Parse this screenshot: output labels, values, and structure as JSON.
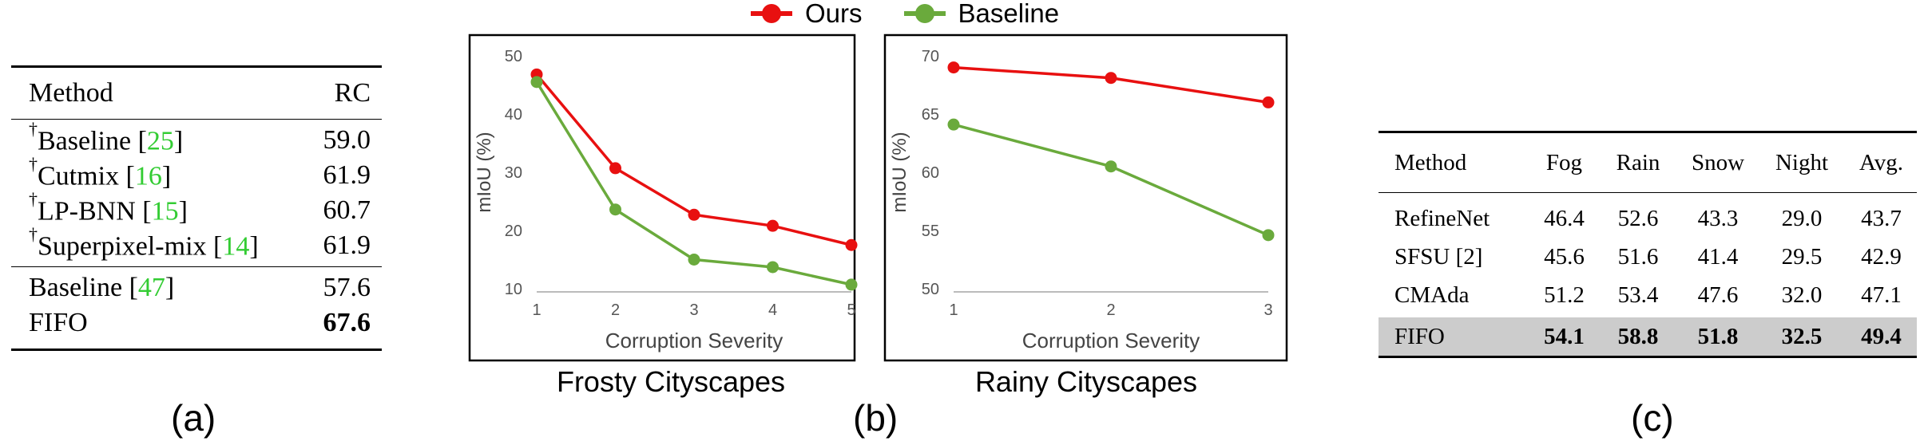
{
  "panels": {
    "a": "(a)",
    "b": "(b)",
    "c": "(c)"
  },
  "table_a": {
    "header": [
      "Method",
      "RC"
    ],
    "rows": [
      {
        "dagger": "†",
        "name": "Baseline",
        "ref": "25",
        "value": "59.0"
      },
      {
        "dagger": "†",
        "name": "Cutmix",
        "ref": "16",
        "value": "61.9"
      },
      {
        "dagger": "†",
        "name": "LP-BNN",
        "ref": "15",
        "value": "60.7"
      },
      {
        "dagger": "†",
        "name": "Superpixel-mix",
        "ref": "14",
        "value": "61.9"
      },
      {
        "dagger": "",
        "name": "Baseline",
        "ref": "47",
        "value": "57.6"
      },
      {
        "dagger": "",
        "name": "FIFO",
        "ref": "",
        "value": "67.6"
      }
    ]
  },
  "legend": {
    "ours": "Ours",
    "baseline": "Baseline"
  },
  "colors": {
    "ours": "#e81010",
    "baseline": "#6aaa3c",
    "ref_green": "#33cc33",
    "highlight_row": "#cccccc"
  },
  "chart_data": [
    {
      "type": "line",
      "subtitle": "Frosty Cityscapes",
      "xlabel": "Corruption Severity",
      "ylabel": "mIoU (%)",
      "x": [
        1,
        2,
        3,
        4,
        5
      ],
      "ylim": [
        10,
        50
      ],
      "yticks": [
        10,
        20,
        30,
        40,
        50
      ],
      "series": [
        {
          "name": "Ours",
          "values": [
            46.8,
            30.7,
            22.7,
            20.8,
            17.5
          ]
        },
        {
          "name": "Baseline",
          "values": [
            45.5,
            23.6,
            15.0,
            13.7,
            10.7
          ]
        }
      ]
    },
    {
      "type": "line",
      "subtitle": "Rainy Cityscapes",
      "xlabel": "Corruption Severity",
      "ylabel": "mIoU (%)",
      "x": [
        1,
        2,
        3
      ],
      "ylim": [
        50,
        70
      ],
      "yticks": [
        50,
        55,
        60,
        65,
        70
      ],
      "series": [
        {
          "name": "Ours",
          "values": [
            69.0,
            68.1,
            66.0
          ]
        },
        {
          "name": "Baseline",
          "values": [
            64.1,
            60.5,
            54.6
          ]
        }
      ]
    }
  ],
  "table_c": {
    "header": [
      "Method",
      "Fog",
      "Rain",
      "Snow",
      "Night",
      "Avg."
    ],
    "rows": [
      [
        "RefineNet",
        "46.4",
        "52.6",
        "43.3",
        "29.0",
        "43.7"
      ],
      [
        "SFSU [2]",
        "45.6",
        "51.6",
        "41.4",
        "29.5",
        "42.9"
      ],
      [
        "CMAda",
        "51.2",
        "53.4",
        "47.6",
        "32.0",
        "47.1"
      ],
      [
        "FIFO",
        "54.1",
        "58.8",
        "51.8",
        "32.5",
        "49.4"
      ]
    ]
  }
}
